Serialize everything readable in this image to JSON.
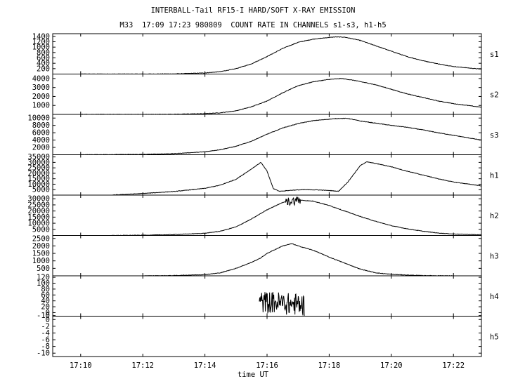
{
  "chart_data": {
    "type": "line",
    "title": "INTERBALL-Tail RF15-I HARD/SOFT X-RAY EMISSION",
    "subtitle": "M33  17:09 17:23 980809  COUNT RATE IN CHANNELS s1-s3, h1-h5",
    "xlabel": "time UT",
    "x_ticks": [
      "17:10",
      "17:12",
      "17:14",
      "17:16",
      "17:18",
      "17:20",
      "17:22"
    ],
    "x_tick_minutes": [
      10,
      12,
      14,
      16,
      18,
      20,
      22
    ],
    "xlim_minutes": [
      9.1,
      22.9
    ],
    "grid": false,
    "panels": [
      {
        "name": "s1",
        "ylim": [
          0,
          1500
        ],
        "y_ticks": [
          200,
          400,
          600,
          800,
          1000,
          1200,
          1400
        ],
        "y_tick_labels": [
          "200",
          "400",
          "600",
          "800",
          "1000",
          "1200",
          "1400"
        ],
        "x": [
          10.0,
          12.0,
          13.0,
          14.0,
          14.5,
          15.0,
          15.5,
          16.0,
          16.5,
          17.0,
          17.5,
          18.0,
          18.2,
          18.5,
          19.0,
          19.5,
          20.0,
          20.5,
          21.0,
          21.5,
          22.0,
          22.9
        ],
        "y": [
          0,
          0,
          5,
          40,
          90,
          200,
          380,
          650,
          950,
          1180,
          1300,
          1360,
          1380,
          1370,
          1250,
          1050,
          850,
          650,
          500,
          380,
          280,
          180
        ]
      },
      {
        "name": "s2",
        "ylim": [
          0,
          4500
        ],
        "y_ticks": [
          1000,
          2000,
          3000,
          4000
        ],
        "y_tick_labels": [
          "1000",
          "2000",
          "3000",
          "4000"
        ],
        "x": [
          10.0,
          12.0,
          13.0,
          14.0,
          14.5,
          15.0,
          15.5,
          16.0,
          16.5,
          17.0,
          17.5,
          18.0,
          18.4,
          18.8,
          19.5,
          20.0,
          20.5,
          21.0,
          21.5,
          22.0,
          22.9
        ],
        "y": [
          0,
          0,
          20,
          80,
          180,
          400,
          850,
          1500,
          2400,
          3200,
          3650,
          3900,
          4000,
          3800,
          3300,
          2800,
          2300,
          1900,
          1500,
          1200,
          800
        ]
      },
      {
        "name": "s3",
        "ylim": [
          0,
          11000
        ],
        "y_ticks": [
          2000,
          4000,
          6000,
          8000,
          10000
        ],
        "y_tick_labels": [
          "2000",
          "4000",
          "6000",
          "8000",
          "10000"
        ],
        "x": [
          10.0,
          12.0,
          13.0,
          14.0,
          14.5,
          15.0,
          15.5,
          16.0,
          16.5,
          17.0,
          17.5,
          18.0,
          18.3,
          18.6,
          19.0,
          19.5,
          20.0,
          20.5,
          21.0,
          21.5,
          22.0,
          22.9
        ],
        "y": [
          0,
          100,
          300,
          800,
          1400,
          2300,
          3700,
          5600,
          7300,
          8500,
          9300,
          9700,
          9900,
          9900,
          9200,
          8600,
          8000,
          7500,
          6800,
          6000,
          5300,
          4000
        ]
      },
      {
        "name": "h1",
        "ylim": [
          0,
          37000
        ],
        "y_ticks": [
          5000,
          10000,
          15000,
          20000,
          25000,
          30000,
          35000
        ],
        "y_tick_labels": [
          "5000",
          "10000",
          "15000",
          "20000",
          "25000",
          "30000",
          "35000"
        ],
        "x": [
          11.0,
          12.0,
          13.0,
          14.0,
          14.5,
          15.0,
          15.5,
          15.8,
          16.0,
          16.2,
          16.4,
          16.8,
          17.2,
          17.6,
          18.0,
          18.3,
          18.6,
          19.0,
          19.2,
          19.5,
          20.0,
          20.5,
          21.0,
          21.5,
          22.0,
          22.9
        ],
        "y": [
          0,
          1500,
          3300,
          6200,
          9200,
          14500,
          24000,
          30000,
          22000,
          6000,
          3500,
          4500,
          5000,
          4800,
          4200,
          3500,
          12000,
          27000,
          30500,
          29000,
          26000,
          22000,
          18500,
          15000,
          12000,
          8500
        ]
      },
      {
        "name": "h2",
        "ylim": [
          0,
          33000
        ],
        "y_ticks": [
          5000,
          10000,
          15000,
          20000,
          25000,
          30000
        ],
        "y_tick_labels": [
          "5000",
          "10000",
          "15000",
          "20000",
          "25000",
          "30000"
        ],
        "x": [
          11.0,
          12.0,
          13.0,
          14.0,
          14.5,
          15.0,
          15.5,
          16.0,
          16.5,
          17.0,
          17.5,
          18.0,
          18.5,
          19.0,
          19.5,
          20.0,
          20.5,
          21.0,
          21.5,
          22.0,
          22.9
        ],
        "y": [
          0,
          200,
          700,
          1800,
          3500,
          7000,
          13500,
          21000,
          27000,
          29000,
          28000,
          24500,
          20000,
          15500,
          11500,
          8000,
          5500,
          3500,
          2000,
          1200,
          500
        ],
        "noise_x": [
          16.6,
          17.1
        ]
      },
      {
        "name": "h3",
        "ylim": [
          0,
          2700
        ],
        "y_ticks": [
          500,
          1000,
          1500,
          2000,
          2500
        ],
        "y_tick_labels": [
          "500",
          "1000",
          "1500",
          "2000",
          "2500"
        ],
        "x": [
          12.0,
          13.0,
          14.0,
          14.5,
          15.0,
          15.5,
          15.8,
          16.0,
          16.5,
          16.8,
          17.0,
          17.5,
          18.0,
          18.5,
          19.0,
          19.5,
          20.0,
          20.5,
          21.0,
          22.0
        ],
        "y": [
          0,
          20,
          80,
          200,
          500,
          900,
          1200,
          1500,
          2000,
          2150,
          2000,
          1700,
          1250,
          850,
          450,
          200,
          100,
          50,
          20,
          0
        ]
      },
      {
        "name": "h4",
        "ylim": [
          -12,
          125
        ],
        "y_ticks": [
          -10,
          0,
          20,
          40,
          60,
          80,
          100,
          120
        ],
        "y_tick_labels": [
          "-10",
          "0",
          "20",
          "40",
          "60",
          "80",
          "100",
          "120"
        ],
        "x": [
          15.75,
          16.0,
          16.3,
          16.6,
          17.0,
          17.2
        ],
        "y": [
          35,
          35,
          35,
          30,
          28,
          25
        ],
        "noise_x": [
          15.75,
          17.2
        ]
      },
      {
        "name": "h5",
        "ylim": [
          -11,
          1
        ],
        "y_ticks": [
          -10,
          -8,
          -6,
          -4,
          -2,
          0
        ],
        "y_tick_labels": [
          "-10",
          "-8",
          "-6",
          "-4",
          "-2",
          "0"
        ],
        "x": [],
        "y": []
      }
    ]
  }
}
